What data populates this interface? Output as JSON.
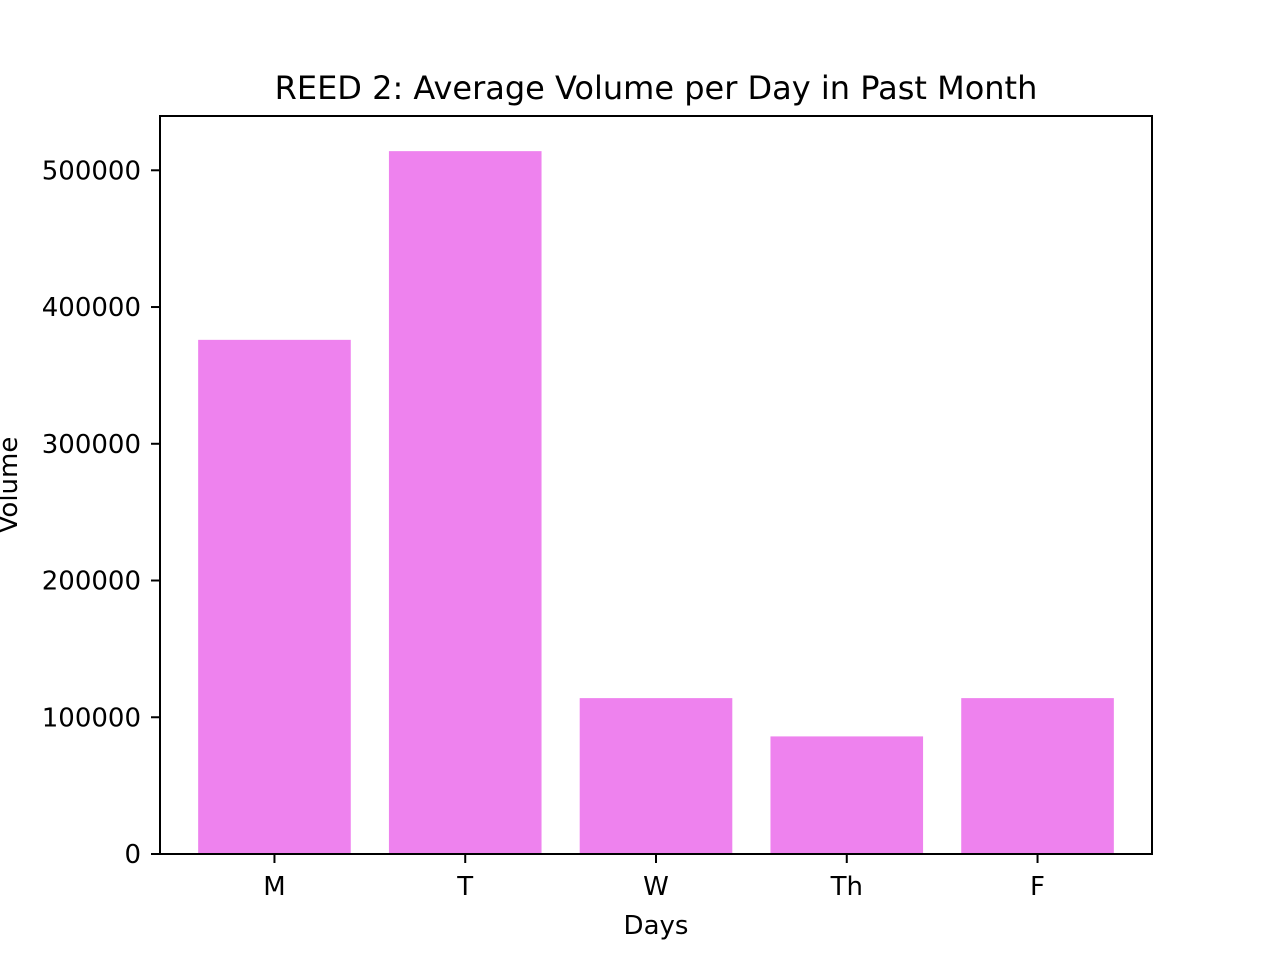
{
  "chart_data": {
    "type": "bar",
    "title": "REED 2: Average Volume per Day in Past Month",
    "xlabel": "Days",
    "ylabel": "Volume",
    "categories": [
      "M",
      "T",
      "W",
      "Th",
      "F"
    ],
    "values": [
      376000,
      514000,
      114000,
      86000,
      114000
    ],
    "ylim": [
      0,
      539700
    ],
    "yticks": [
      0,
      100000,
      200000,
      300000,
      400000,
      500000
    ],
    "ytick_labels": [
      "0",
      "100000",
      "200000",
      "300000",
      "400000",
      "500000"
    ],
    "grid": false,
    "bar_color": "#ee82ee"
  }
}
